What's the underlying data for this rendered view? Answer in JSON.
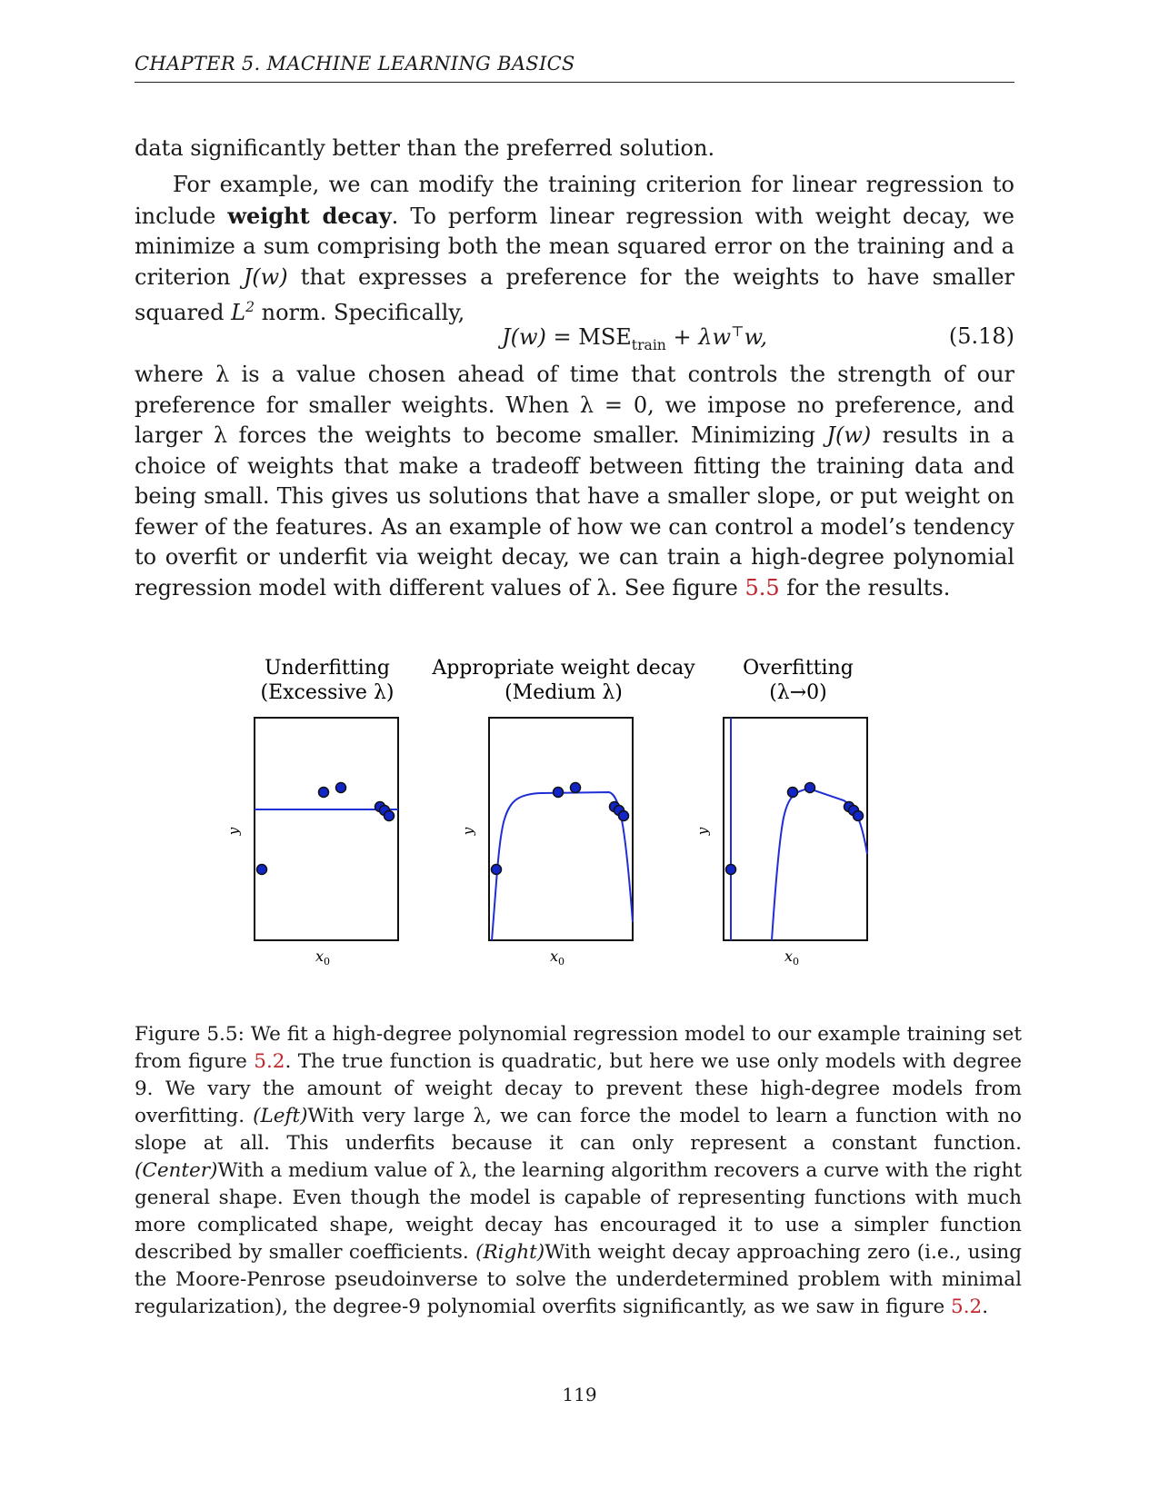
{
  "header": {
    "running_title": "CHAPTER 5.   MACHINE LEARNING BASICS"
  },
  "body": {
    "p1": "data significantly better than the preferred solution.",
    "p2": {
      "s1": "For example, we can modify the training criterion for linear regression to include ",
      "term": "weight decay",
      "s2": ". To perform linear regression with weight decay, we minimize a sum comprising both the mean squared error on the training and a criterion ",
      "s3": " that expresses a preference for the weights to have smaller squared ",
      "s4": " norm. Specifically,"
    },
    "equation": {
      "lhs": "J(w)",
      "mse": "MSE",
      "mse_sub": "train",
      "rhs": "+ λw",
      "rhs_sup": "⊤",
      "rhs_end": "w,",
      "number": "(5.18)"
    },
    "p3": {
      "s1": "where λ is a value chosen ahead of time that controls the strength of our preference for smaller weights. When λ = 0, we impose no preference, and larger λ forces the weights to become smaller. Minimizing ",
      "s2": " results in a choice of weights that make a tradeoff between fitting the training data and being small. This gives us solutions that have a smaller slope, or put weight on fewer of the features. As an example of how we can control a model’s tendency to overfit or underfit via weight decay, we can train a high-degree polynomial regression model with different values of λ. See figure ",
      "link": "5.5",
      "s3": " for the results."
    },
    "jw": "J(w)",
    "l2": "L",
    "l2_sup": "2"
  },
  "figure": {
    "panels": [
      {
        "title_line1": "Underfitting",
        "title_line2": "(Excessive λ)",
        "xlabel": "x",
        "xlabel_sub": "0",
        "ylabel": "y"
      },
      {
        "title_line1": "Appropriate weight decay",
        "title_line2": "(Medium λ)",
        "xlabel": "x",
        "xlabel_sub": "0",
        "ylabel": "y"
      },
      {
        "title_line1": "Overfitting",
        "title_line2": "(λ→0)",
        "xlabel": "x",
        "xlabel_sub": "0",
        "ylabel": "y"
      }
    ]
  },
  "caption": {
    "label": "Figure 5.5:",
    "s1": " We fit a high-degree polynomial regression model to our example training set from figure ",
    "link1": "5.2",
    "s2": ". The true function is quadratic, but here we use only models with degree 9. We vary the amount of weight decay to prevent these high-degree models from overfitting. ",
    "left": "(Left)",
    "s3": "With very large λ, we can force the model to learn a function with no slope at all. This underfits because it can only represent a constant function. ",
    "center": "(Center)",
    "s4": "With a medium value of λ, the learning algorithm recovers a curve with the right general shape. Even though the model is capable of representing functions with much more complicated shape, weight decay has encouraged it to use a simpler function described by smaller coefficients. ",
    "right": "(Right)",
    "s5": "With weight decay approaching zero (i.e., using the Moore-Penrose pseudoinverse to solve the underdetermined problem with minimal regularization), the degree-9 polynomial overfits significantly, as we saw in figure ",
    "link2": "5.2",
    "s6": "."
  },
  "page_number": "119",
  "colors": {
    "curve": "#1f2fd6",
    "point": "#1226c8",
    "link": "#c0272d"
  }
}
